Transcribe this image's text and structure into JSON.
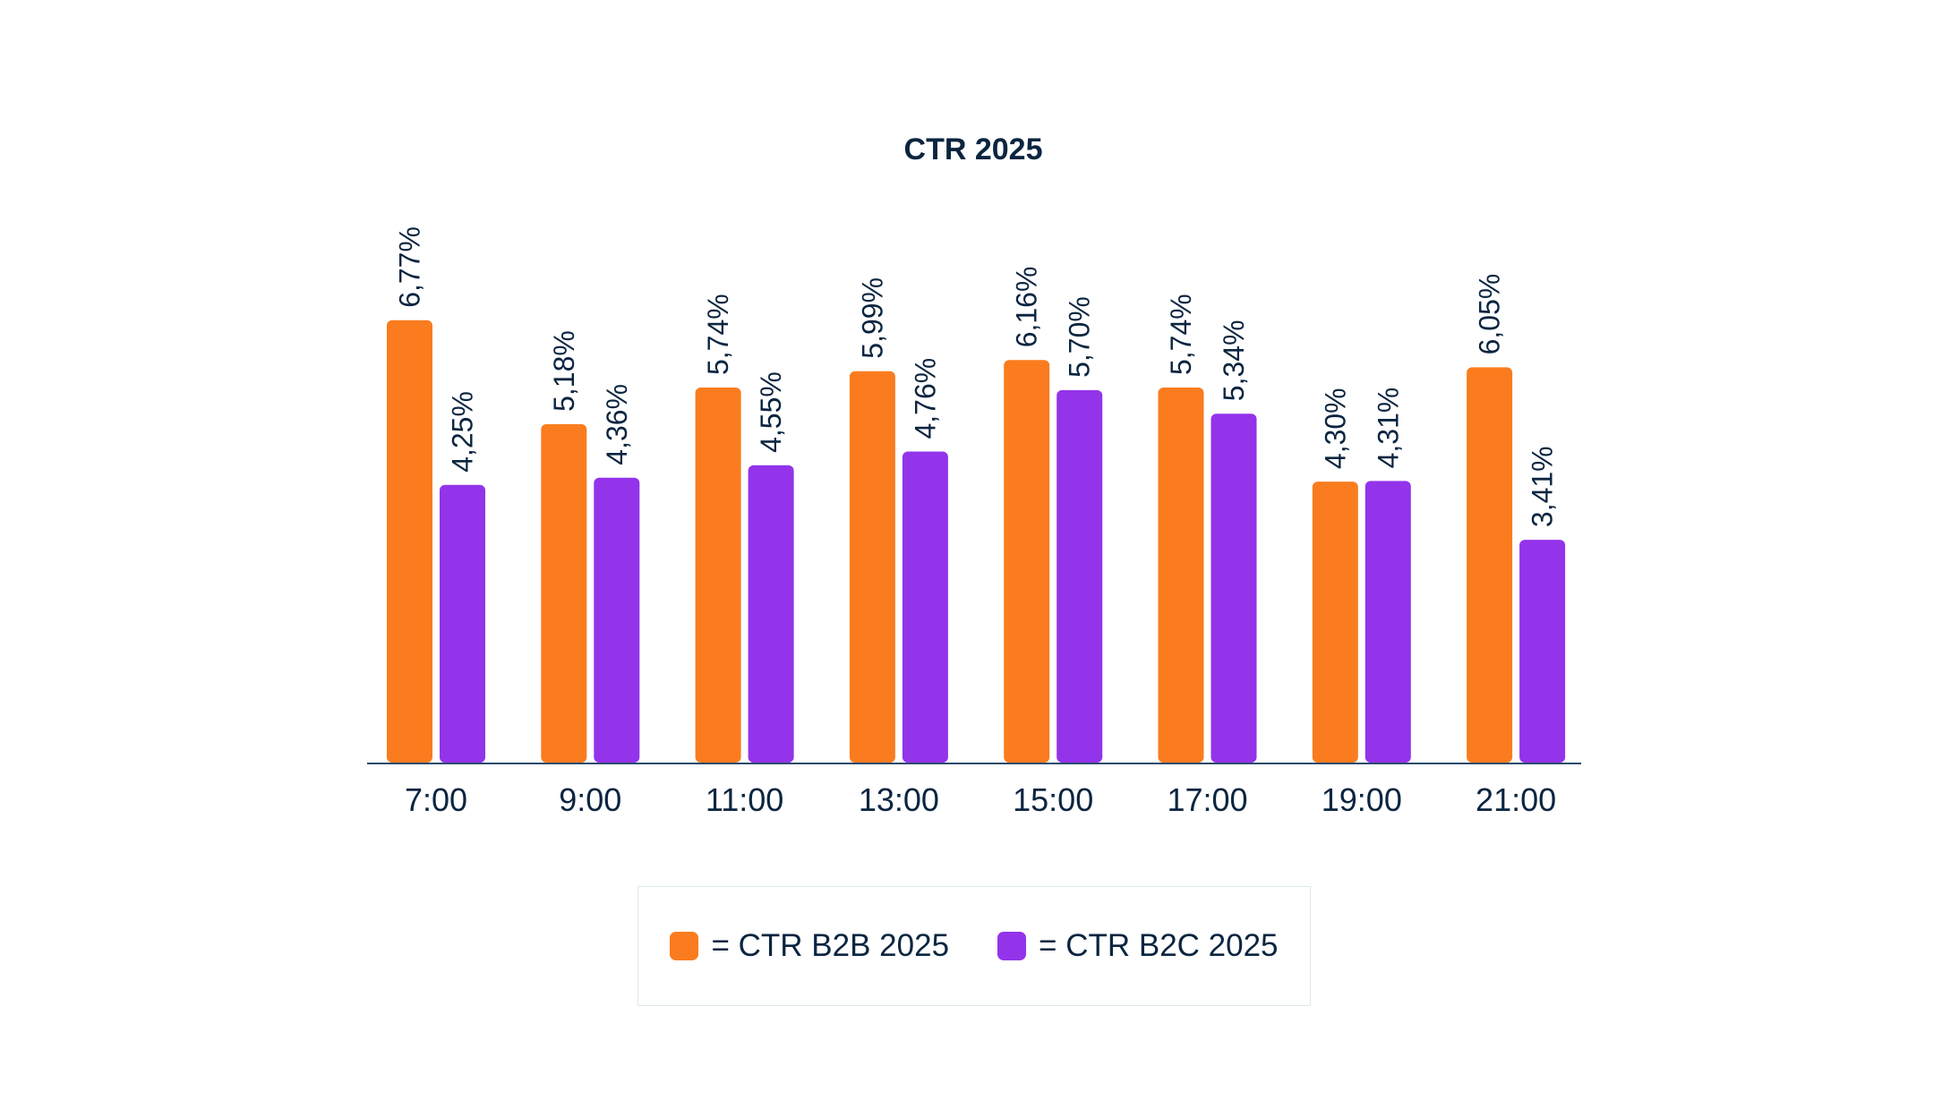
{
  "chart_data": {
    "type": "bar",
    "title": "CTR 2025",
    "xlabel": "",
    "ylabel": "",
    "categories": [
      "7:00",
      "9:00",
      "11:00",
      "13:00",
      "15:00",
      "17:00",
      "19:00",
      "21:00"
    ],
    "ylim": [
      0,
      7.5
    ],
    "grid": false,
    "series": [
      {
        "name": "CTR B2B 2025",
        "color": "#fa7c1e",
        "values": [
          6.77,
          5.18,
          5.74,
          5.99,
          6.16,
          5.74,
          4.3,
          6.05
        ],
        "labels": [
          "6,77%",
          "5,18%",
          "5,74%",
          "5,99%",
          "6,16%",
          "5,74%",
          "4,30%",
          "6,05%"
        ]
      },
      {
        "name": "CTR B2C 2025",
        "color": "#9333ea",
        "values": [
          4.25,
          4.36,
          4.55,
          4.76,
          5.7,
          5.34,
          4.31,
          3.41
        ],
        "labels": [
          "4,25%",
          "4,36%",
          "4,55%",
          "4,76%",
          "5,70%",
          "5,34%",
          "4,31%",
          "3,41%"
        ]
      }
    ],
    "legend": {
      "position": "bottom-center",
      "items": [
        {
          "label": "= CTR B2B 2025",
          "color": "#fa7c1e"
        },
        {
          "label": "= CTR B2C 2025",
          "color": "#9333ea"
        }
      ]
    },
    "axis_color": "#2c4a6e",
    "text_color": "#0b2540"
  }
}
